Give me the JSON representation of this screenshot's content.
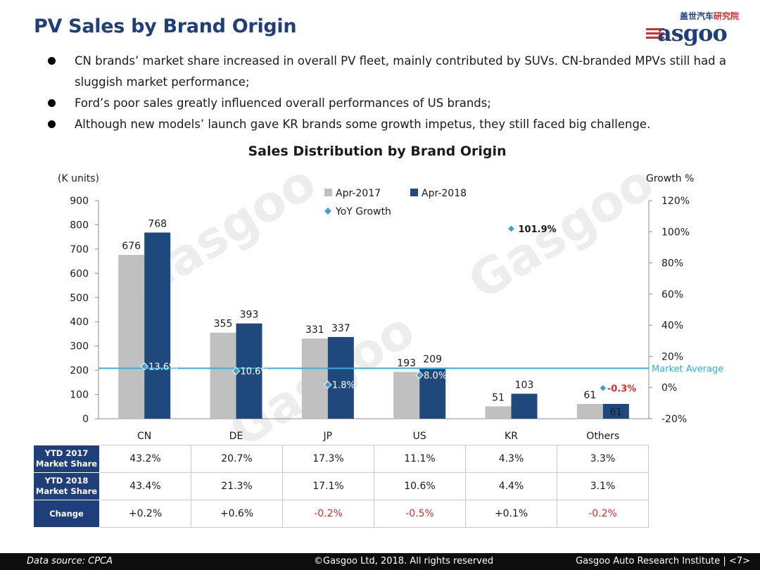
{
  "page_title": "PV Sales by Brand Origin",
  "logo": {
    "chinese_part1": "盖世汽车",
    "chinese_part2": "研究院",
    "latin": "asgoo"
  },
  "bullets": [
    "CN brands’ market share increased in overall PV fleet, mainly contributed by SUVs. CN-branded MPVs still had a sluggish market performance;",
    "Ford’s poor sales greatly influenced overall performances of US brands;",
    "Although new models’ launch gave KR brands some growth impetus, they still faced big challenge."
  ],
  "chart_data": {
    "type": "bar",
    "title": "Sales Distribution by Brand Origin",
    "ylabel_left": "(K units)",
    "ylabel_right": "Growth %",
    "categories": [
      "CN",
      "DE",
      "JP",
      "US",
      "KR",
      "Others"
    ],
    "series": [
      {
        "name": "Apr-2017",
        "type": "bar",
        "color": "#c0c0c0",
        "values": [
          676,
          355,
          331,
          193,
          51,
          61
        ]
      },
      {
        "name": "Apr-2018",
        "type": "bar",
        "color": "#1f497d",
        "values": [
          768,
          393,
          337,
          209,
          103,
          61
        ]
      },
      {
        "name": "YoY Growth",
        "type": "scatter",
        "axis": "right",
        "color": "#3aa0d6",
        "values": [
          13.6,
          10.6,
          1.8,
          8.0,
          101.9,
          -0.3
        ]
      }
    ],
    "growth_labels": [
      "13.6%",
      "10.6%",
      "1.8%",
      "8.0%",
      "101.9%",
      "-0.3%"
    ],
    "left_ticks": [
      "0",
      "100",
      "200",
      "300",
      "400",
      "500",
      "600",
      "700",
      "800",
      "900"
    ],
    "right_ticks": [
      "-20%",
      "0%",
      "20%",
      "40%",
      "60%",
      "80%",
      "100%",
      "120%"
    ],
    "ylim_left": [
      0,
      900
    ],
    "ylim_right": [
      -20,
      120
    ],
    "market_average_value": 208,
    "market_average_label": "Market Average",
    "market_average_color": "#2ab4e6",
    "legend_position": "top-center",
    "grid": false
  },
  "watermark_text": "Gasgoo",
  "table": {
    "rows": [
      {
        "header": [
          "YTD 2017",
          "Market Share"
        ],
        "cells": [
          "43.2%",
          "20.7%",
          "17.3%",
          "11.1%",
          "4.3%",
          "3.3%"
        ]
      },
      {
        "header": [
          "YTD 2018",
          "Market Share"
        ],
        "cells": [
          "43.4%",
          "21.3%",
          "17.1%",
          "10.6%",
          "4.4%",
          "3.1%"
        ]
      },
      {
        "header": [
          "Change"
        ],
        "cells": [
          "+0.2%",
          "+0.6%",
          "-0.2%",
          "-0.5%",
          "+0.1%",
          "-0.2%"
        ]
      }
    ]
  },
  "footer": {
    "source": "Data source: CPCA",
    "copyright": "©Gasgoo Ltd, 2018. All rights reserved",
    "institute": "Gasgoo Auto Research Institute",
    "page": "<7>"
  }
}
